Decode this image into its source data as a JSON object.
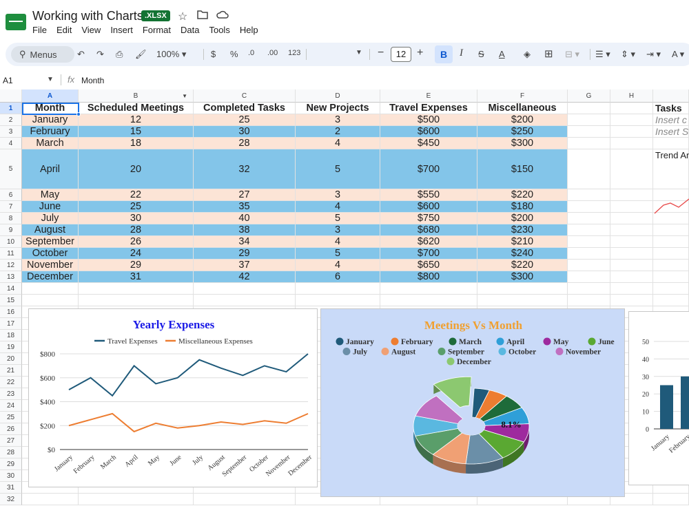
{
  "doc": {
    "title": "Working with Charts",
    "badge": ".XLSX"
  },
  "menu": [
    "File",
    "Edit",
    "View",
    "Insert",
    "Format",
    "Data",
    "Tools",
    "Help"
  ],
  "toolbar": {
    "menus_label": "Menus",
    "zoom": "100%",
    "currency": "$",
    "percent": "%",
    "dec_down": ".0",
    "dec_up": ".00",
    "number_format": "123",
    "font_size": "12",
    "bold": "B",
    "italic": "I",
    "strike": "S",
    "text_color": "A"
  },
  "formula": {
    "cell_ref": "A1",
    "fx": "fx",
    "value": "Month"
  },
  "columns": [
    "A",
    "B",
    "C",
    "D",
    "E",
    "F",
    "G",
    "H",
    ""
  ],
  "rows": [
    "1",
    "2",
    "3",
    "4",
    "5",
    "6",
    "7",
    "8",
    "9",
    "10",
    "11",
    "12",
    "13",
    "14",
    "15",
    "16",
    "17",
    "18",
    "19",
    "20",
    "21",
    "22",
    "23",
    "24",
    "25",
    "26",
    "27",
    "28",
    "29",
    "30",
    "31",
    "32"
  ],
  "table": {
    "headers": [
      "Month",
      "Scheduled Meetings",
      "Completed Tasks",
      "New Projects",
      "Travel Expenses",
      "Miscellaneous"
    ],
    "rows": [
      [
        "January",
        "12",
        "25",
        "3",
        "$500",
        "$200"
      ],
      [
        "February",
        "15",
        "30",
        "2",
        "$600",
        "$250"
      ],
      [
        "March",
        "18",
        "28",
        "4",
        "$450",
        "$300"
      ],
      [
        "April",
        "20",
        "32",
        "5",
        "$700",
        "$150"
      ],
      [
        "May",
        "22",
        "27",
        "3",
        "$550",
        "$220"
      ],
      [
        "June",
        "25",
        "35",
        "4",
        "$600",
        "$180"
      ],
      [
        "July",
        "30",
        "40",
        "5",
        "$750",
        "$200"
      ],
      [
        "August",
        "28",
        "38",
        "3",
        "$680",
        "$230"
      ],
      [
        "September",
        "26",
        "34",
        "4",
        "$620",
        "$210"
      ],
      [
        "October",
        "24",
        "29",
        "5",
        "$700",
        "$240"
      ],
      [
        "November",
        "29",
        "37",
        "4",
        "$650",
        "$220"
      ],
      [
        "December",
        "31",
        "42",
        "6",
        "$800",
        "$300"
      ]
    ]
  },
  "side_panel": {
    "title": "Tasks",
    "item1": "Insert c",
    "item2": "Insert S",
    "trend_label": "Trend An"
  },
  "colors": {
    "odd_row": "#fce4d6",
    "even_row": "#83c5e9",
    "travel": "#1f5a7a",
    "misc": "#ed7d31",
    "pie_bg": "#c9daf8"
  },
  "chart_data": [
    {
      "type": "line",
      "title": "Yearly Expenses",
      "series": [
        {
          "name": "Travel Expenses",
          "values": [
            500,
            600,
            450,
            700,
            550,
            600,
            750,
            680,
            620,
            700,
            650,
            800
          ]
        },
        {
          "name": "Miscellaneous Expenses",
          "values": [
            200,
            250,
            300,
            150,
            220,
            180,
            200,
            230,
            210,
            240,
            220,
            300
          ]
        }
      ],
      "categories": [
        "January",
        "February",
        "March",
        "April",
        "May",
        "June",
        "July",
        "August",
        "September",
        "October",
        "November",
        "December"
      ],
      "y_ticks": [
        "$0",
        "$200",
        "$400",
        "$600",
        "$800"
      ],
      "ylim": [
        0,
        800
      ],
      "legend": "top",
      "grid": true
    },
    {
      "type": "pie",
      "title": "Meetings Vs Month",
      "categories": [
        "January",
        "February",
        "March",
        "April",
        "May",
        "June",
        "July",
        "August",
        "September",
        "October",
        "November",
        "December"
      ],
      "values": [
        12,
        15,
        18,
        20,
        22,
        25,
        30,
        28,
        26,
        24,
        29,
        31
      ],
      "colors": [
        "#1f5a7a",
        "#ed7d31",
        "#1e6b3a",
        "#2f9fd8",
        "#9e2a9e",
        "#5aa832",
        "#6b8fa8",
        "#f0a074",
        "#5a9e6a",
        "#5ab8e0",
        "#c070c0",
        "#8cc870"
      ],
      "slice_label": "8.1%",
      "legend": "top"
    },
    {
      "type": "bar",
      "categories": [
        "January",
        "February"
      ],
      "values": [
        25,
        30
      ],
      "y_ticks": [
        "0",
        "10",
        "20",
        "30",
        "40",
        "50"
      ],
      "ylim": [
        0,
        50
      ]
    }
  ]
}
